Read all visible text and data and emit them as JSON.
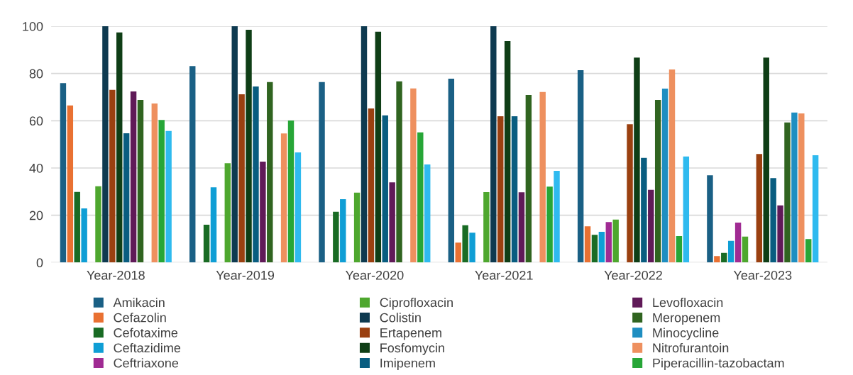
{
  "chart_data": {
    "type": "bar",
    "categories": [
      "Year-2018",
      "Year-2019",
      "Year-2020",
      "Year-2021",
      "Year-2022",
      "Year-2023"
    ],
    "ylim": [
      0,
      100
    ],
    "yticks": [
      0,
      20,
      40,
      60,
      80,
      100
    ],
    "grid": "y",
    "legend": "bottom",
    "series": [
      {
        "name": "Amikacin",
        "color": "#1a6085",
        "values": [
          75.9,
          83.1,
          76.4,
          77.8,
          81.4,
          36.9
        ]
      },
      {
        "name": "Cefazolin",
        "color": "#e97132",
        "values": [
          66.5,
          null,
          null,
          8.4,
          15.3,
          2.7
        ]
      },
      {
        "name": "Cefotaxime",
        "color": "#196b24",
        "values": [
          29.9,
          16.0,
          21.5,
          15.8,
          11.7,
          4.1
        ]
      },
      {
        "name": "Ceftazidime",
        "color": "#0f9ed5",
        "values": [
          22.9,
          31.8,
          26.8,
          12.6,
          13.0,
          9.2
        ]
      },
      {
        "name": "Ceftriaxone",
        "color": "#a02b93",
        "values": [
          null,
          null,
          null,
          null,
          17.1,
          16.9
        ]
      },
      {
        "name": "Ciprofloxacin",
        "color": "#4ea72e",
        "values": [
          32.3,
          42.0,
          29.6,
          29.8,
          18.2,
          11.0
        ]
      },
      {
        "name": "Colistin",
        "color": "#0e3a50",
        "values": [
          100,
          100,
          100,
          100,
          null,
          null
        ]
      },
      {
        "name": "Ertapenem",
        "color": "#9a4010",
        "values": [
          73.1,
          71.2,
          65.2,
          61.9,
          58.5,
          45.9
        ]
      },
      {
        "name": "Fosfomycin",
        "color": "#0f3e16",
        "values": [
          97.4,
          98.5,
          97.7,
          93.7,
          86.7,
          86.7
        ]
      },
      {
        "name": "Imipenem",
        "color": "#095d80",
        "values": [
          54.7,
          74.5,
          62.3,
          61.9,
          44.3,
          35.7
        ]
      },
      {
        "name": "Levofloxacin",
        "color": "#601a58",
        "values": [
          72.4,
          42.7,
          33.9,
          29.7,
          30.8,
          24.2
        ]
      },
      {
        "name": "Meropenem",
        "color": "#306420",
        "values": [
          68.8,
          76.4,
          76.7,
          70.9,
          68.8,
          59.3
        ]
      },
      {
        "name": "Minocycline",
        "color": "#1f8ec1",
        "values": [
          null,
          null,
          null,
          null,
          73.6,
          63.5
        ]
      },
      {
        "name": "Nitrofurantoin",
        "color": "#ee905f",
        "values": [
          67.3,
          54.6,
          73.7,
          72.2,
          81.7,
          63.1
        ]
      },
      {
        "name": "Piperacillin-tazobactam",
        "color": "#27a637",
        "values": [
          60.3,
          60.1,
          55.1,
          32.1,
          11.2,
          9.9
        ]
      },
      {
        "color": "#2fbaef",
        "values": [
          55.7,
          46.6,
          41.5,
          38.8,
          44.9,
          45.4
        ]
      }
    ]
  }
}
